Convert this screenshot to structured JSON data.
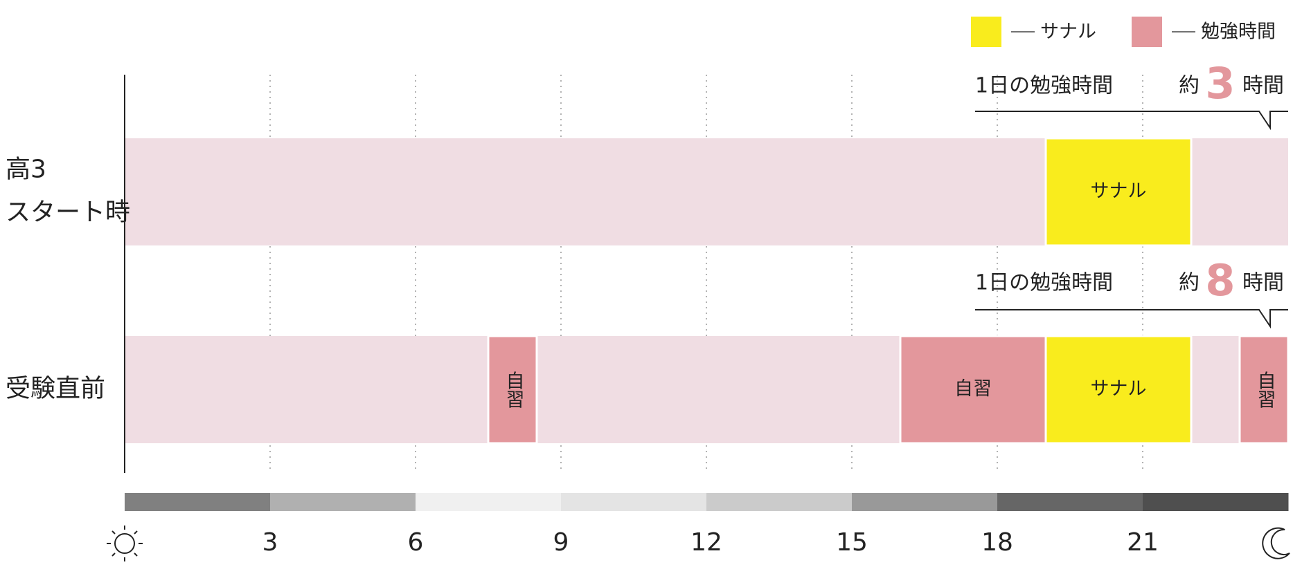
{
  "chart_data": {
    "type": "timeline",
    "xlim": [
      0,
      24
    ],
    "xticks": [
      3,
      6,
      9,
      12,
      15,
      18,
      21
    ],
    "grid": true,
    "legend": [
      {
        "name": "サナル",
        "color": "#f9ec1d"
      },
      {
        "name": "勉強時間",
        "color": "#e3979c"
      }
    ],
    "background_color": "#f0dde3",
    "daylight_colors": [
      "#808080",
      "#b0b0b0",
      "#f0f0f0",
      "#e4e4e4",
      "#cbcbcb",
      "#999999",
      "#666666",
      "#4f4f4f"
    ],
    "rows": [
      {
        "label": [
          "高3",
          "スタート時"
        ],
        "note": "1日の勉強時間",
        "approx": "約",
        "hours": 3,
        "unit": "時間",
        "segments": [
          {
            "start": 19,
            "end": 22,
            "label": "サナル",
            "color": "#f9ec1d"
          }
        ]
      },
      {
        "label": [
          "受験直前"
        ],
        "note": "1日の勉強時間",
        "approx": "約",
        "hours": 8,
        "unit": "時間",
        "segments": [
          {
            "start": 7.5,
            "end": 8.5,
            "label": "自習",
            "color": "#e3979c"
          },
          {
            "start": 16,
            "end": 19,
            "label": "自習",
            "color": "#e3979c"
          },
          {
            "start": 19,
            "end": 22,
            "label": "サナル",
            "color": "#f9ec1d"
          },
          {
            "start": 23,
            "end": 24,
            "label": "自習",
            "color": "#e3979c"
          }
        ]
      }
    ]
  }
}
